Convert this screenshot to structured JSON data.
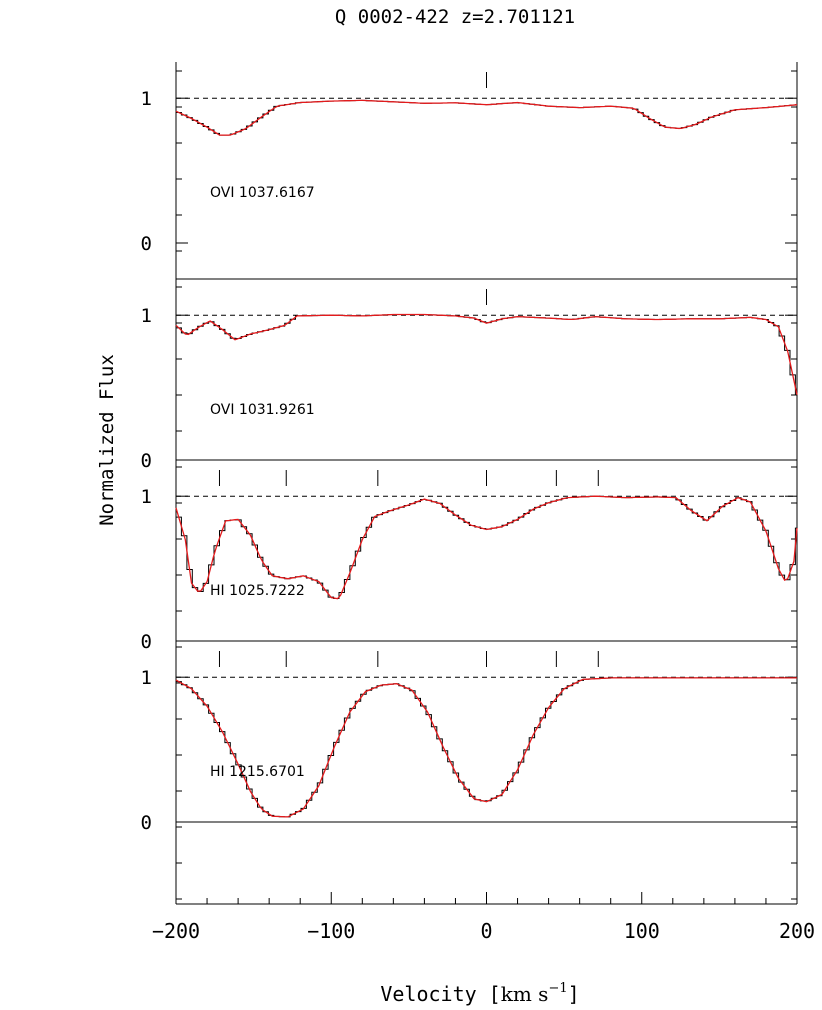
{
  "chart_data": {
    "type": "line",
    "title": "Q 0002-422 z=2.701121",
    "xlabel_main": "Velocity",
    "xlabel_unit_base": "km s",
    "xlabel_unit_exp": "−1",
    "ylabel": "Normalized Flux",
    "xlim": [
      -200,
      200
    ],
    "x_ticks": [
      -200,
      -100,
      0,
      100,
      200
    ],
    "x_tick_labels": [
      "−200",
      "−100",
      "0",
      "100",
      "200"
    ],
    "colors": {
      "data": "#000000",
      "fit": "#e41a1c",
      "continuum": "#000000"
    },
    "grid": false,
    "legend": "none",
    "panels": [
      {
        "label": "OVI 1037.6167",
        "y_ticks": [
          1,
          0
        ],
        "y_tick_labels": [
          "1",
          "0"
        ],
        "components": [
          0
        ],
        "profile": [
          [
            -200,
            0.91
          ],
          [
            -190,
            0.86
          ],
          [
            -180,
            0.8
          ],
          [
            -172,
            0.745
          ],
          [
            -165,
            0.745
          ],
          [
            -155,
            0.79
          ],
          [
            -145,
            0.87
          ],
          [
            -135,
            0.945
          ],
          [
            -120,
            0.97
          ],
          [
            -100,
            0.98
          ],
          [
            -80,
            0.985
          ],
          [
            -60,
            0.975
          ],
          [
            -40,
            0.965
          ],
          [
            -20,
            0.968
          ],
          [
            0,
            0.955
          ],
          [
            20,
            0.97
          ],
          [
            40,
            0.945
          ],
          [
            60,
            0.935
          ],
          [
            80,
            0.945
          ],
          [
            95,
            0.93
          ],
          [
            105,
            0.86
          ],
          [
            115,
            0.8
          ],
          [
            125,
            0.79
          ],
          [
            135,
            0.82
          ],
          [
            145,
            0.87
          ],
          [
            160,
            0.92
          ],
          [
            180,
            0.935
          ],
          [
            200,
            0.955
          ]
        ]
      },
      {
        "label": "OVI 1031.9261",
        "y_ticks": [
          1,
          0
        ],
        "y_tick_labels": [
          "1",
          "0"
        ],
        "components": [
          0
        ],
        "profile": [
          [
            -200,
            0.93
          ],
          [
            -193,
            0.86
          ],
          [
            -185,
            0.92
          ],
          [
            -178,
            0.96
          ],
          [
            -170,
            0.9
          ],
          [
            -162,
            0.83
          ],
          [
            -152,
            0.87
          ],
          [
            -140,
            0.9
          ],
          [
            -130,
            0.93
          ],
          [
            -122,
            0.995
          ],
          [
            -100,
            1.0
          ],
          [
            -80,
            0.995
          ],
          [
            -60,
            1.005
          ],
          [
            -40,
            1.005
          ],
          [
            -20,
            0.995
          ],
          [
            -8,
            0.98
          ],
          [
            0,
            0.945
          ],
          [
            10,
            0.975
          ],
          [
            20,
            0.99
          ],
          [
            40,
            0.98
          ],
          [
            55,
            0.97
          ],
          [
            70,
            0.99
          ],
          [
            90,
            0.975
          ],
          [
            110,
            0.97
          ],
          [
            130,
            0.975
          ],
          [
            150,
            0.975
          ],
          [
            170,
            0.985
          ],
          [
            180,
            0.97
          ],
          [
            188,
            0.92
          ],
          [
            194,
            0.75
          ],
          [
            198,
            0.55
          ],
          [
            200,
            0.45
          ]
        ]
      },
      {
        "label": "HI 1025.7222",
        "y_ticks": [
          1,
          0
        ],
        "y_tick_labels": [
          "1",
          "0"
        ],
        "components": [
          -172,
          -129,
          -70,
          0,
          45,
          72
        ],
        "profile": [
          [
            -200,
            0.92
          ],
          [
            -194,
            0.7
          ],
          [
            -190,
            0.4
          ],
          [
            -185,
            0.33
          ],
          [
            -180,
            0.41
          ],
          [
            -175,
            0.62
          ],
          [
            -168,
            0.83
          ],
          [
            -160,
            0.84
          ],
          [
            -152,
            0.73
          ],
          [
            -145,
            0.56
          ],
          [
            -138,
            0.45
          ],
          [
            -128,
            0.43
          ],
          [
            -118,
            0.45
          ],
          [
            -108,
            0.41
          ],
          [
            -100,
            0.3
          ],
          [
            -95,
            0.29
          ],
          [
            -88,
            0.47
          ],
          [
            -80,
            0.7
          ],
          [
            -72,
            0.86
          ],
          [
            -62,
            0.9
          ],
          [
            -50,
            0.94
          ],
          [
            -40,
            0.98
          ],
          [
            -30,
            0.95
          ],
          [
            -20,
            0.87
          ],
          [
            -10,
            0.8
          ],
          [
            0,
            0.77
          ],
          [
            10,
            0.79
          ],
          [
            20,
            0.84
          ],
          [
            30,
            0.91
          ],
          [
            40,
            0.955
          ],
          [
            52,
            0.99
          ],
          [
            70,
            1.0
          ],
          [
            90,
            0.99
          ],
          [
            110,
            0.995
          ],
          [
            122,
            0.99
          ],
          [
            132,
            0.9
          ],
          [
            142,
            0.83
          ],
          [
            152,
            0.93
          ],
          [
            162,
            0.99
          ],
          [
            170,
            0.96
          ],
          [
            180,
            0.76
          ],
          [
            188,
            0.5
          ],
          [
            193,
            0.4
          ],
          [
            198,
            0.55
          ],
          [
            200,
            0.78
          ]
        ]
      },
      {
        "label": "HI 1215.6701",
        "y_ticks": [
          1,
          0
        ],
        "y_tick_labels": [
          "1",
          "0"
        ],
        "components": [
          -172,
          -129,
          -70,
          0,
          45,
          72
        ],
        "profile": [
          [
            -200,
            0.98
          ],
          [
            -190,
            0.92
          ],
          [
            -180,
            0.8
          ],
          [
            -170,
            0.62
          ],
          [
            -160,
            0.4
          ],
          [
            -152,
            0.21
          ],
          [
            -145,
            0.09
          ],
          [
            -138,
            0.04
          ],
          [
            -128,
            0.035
          ],
          [
            -118,
            0.09
          ],
          [
            -108,
            0.25
          ],
          [
            -98,
            0.52
          ],
          [
            -88,
            0.76
          ],
          [
            -78,
            0.9
          ],
          [
            -68,
            0.945
          ],
          [
            -58,
            0.955
          ],
          [
            -48,
            0.91
          ],
          [
            -38,
            0.76
          ],
          [
            -28,
            0.52
          ],
          [
            -18,
            0.3
          ],
          [
            -8,
            0.16
          ],
          [
            0,
            0.14
          ],
          [
            10,
            0.19
          ],
          [
            20,
            0.36
          ],
          [
            30,
            0.6
          ],
          [
            40,
            0.79
          ],
          [
            50,
            0.92
          ],
          [
            62,
            0.985
          ],
          [
            80,
            0.995
          ],
          [
            120,
            0.995
          ],
          [
            160,
            0.995
          ],
          [
            200,
            0.995
          ]
        ]
      }
    ]
  }
}
